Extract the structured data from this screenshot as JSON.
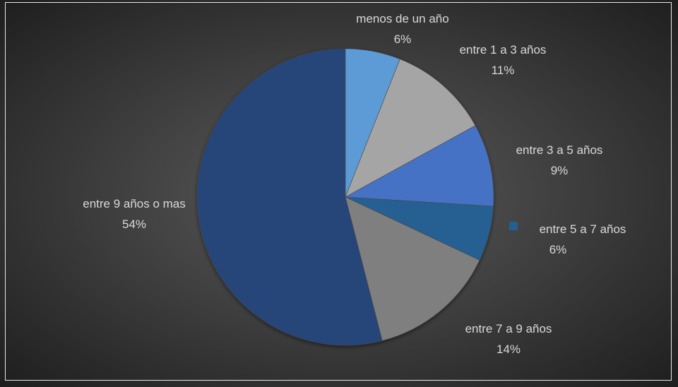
{
  "chart_data": {
    "type": "pie",
    "categories": [
      "menos de un año",
      "entre 1 a 3 años",
      "entre 3 a 5 años",
      "entre 5 a 7 años",
      "entre 7 a 9 años",
      "entre 9 años o mas"
    ],
    "values": [
      6,
      11,
      9,
      6,
      14,
      54
    ],
    "value_labels": [
      "6%",
      "11%",
      "9%",
      "6%",
      "14%",
      "54%"
    ],
    "colors": [
      "#5b9bd5",
      "#a5a5a5",
      "#4472c4",
      "#255e91",
      "#7f7f7f",
      "#264478"
    ]
  }
}
